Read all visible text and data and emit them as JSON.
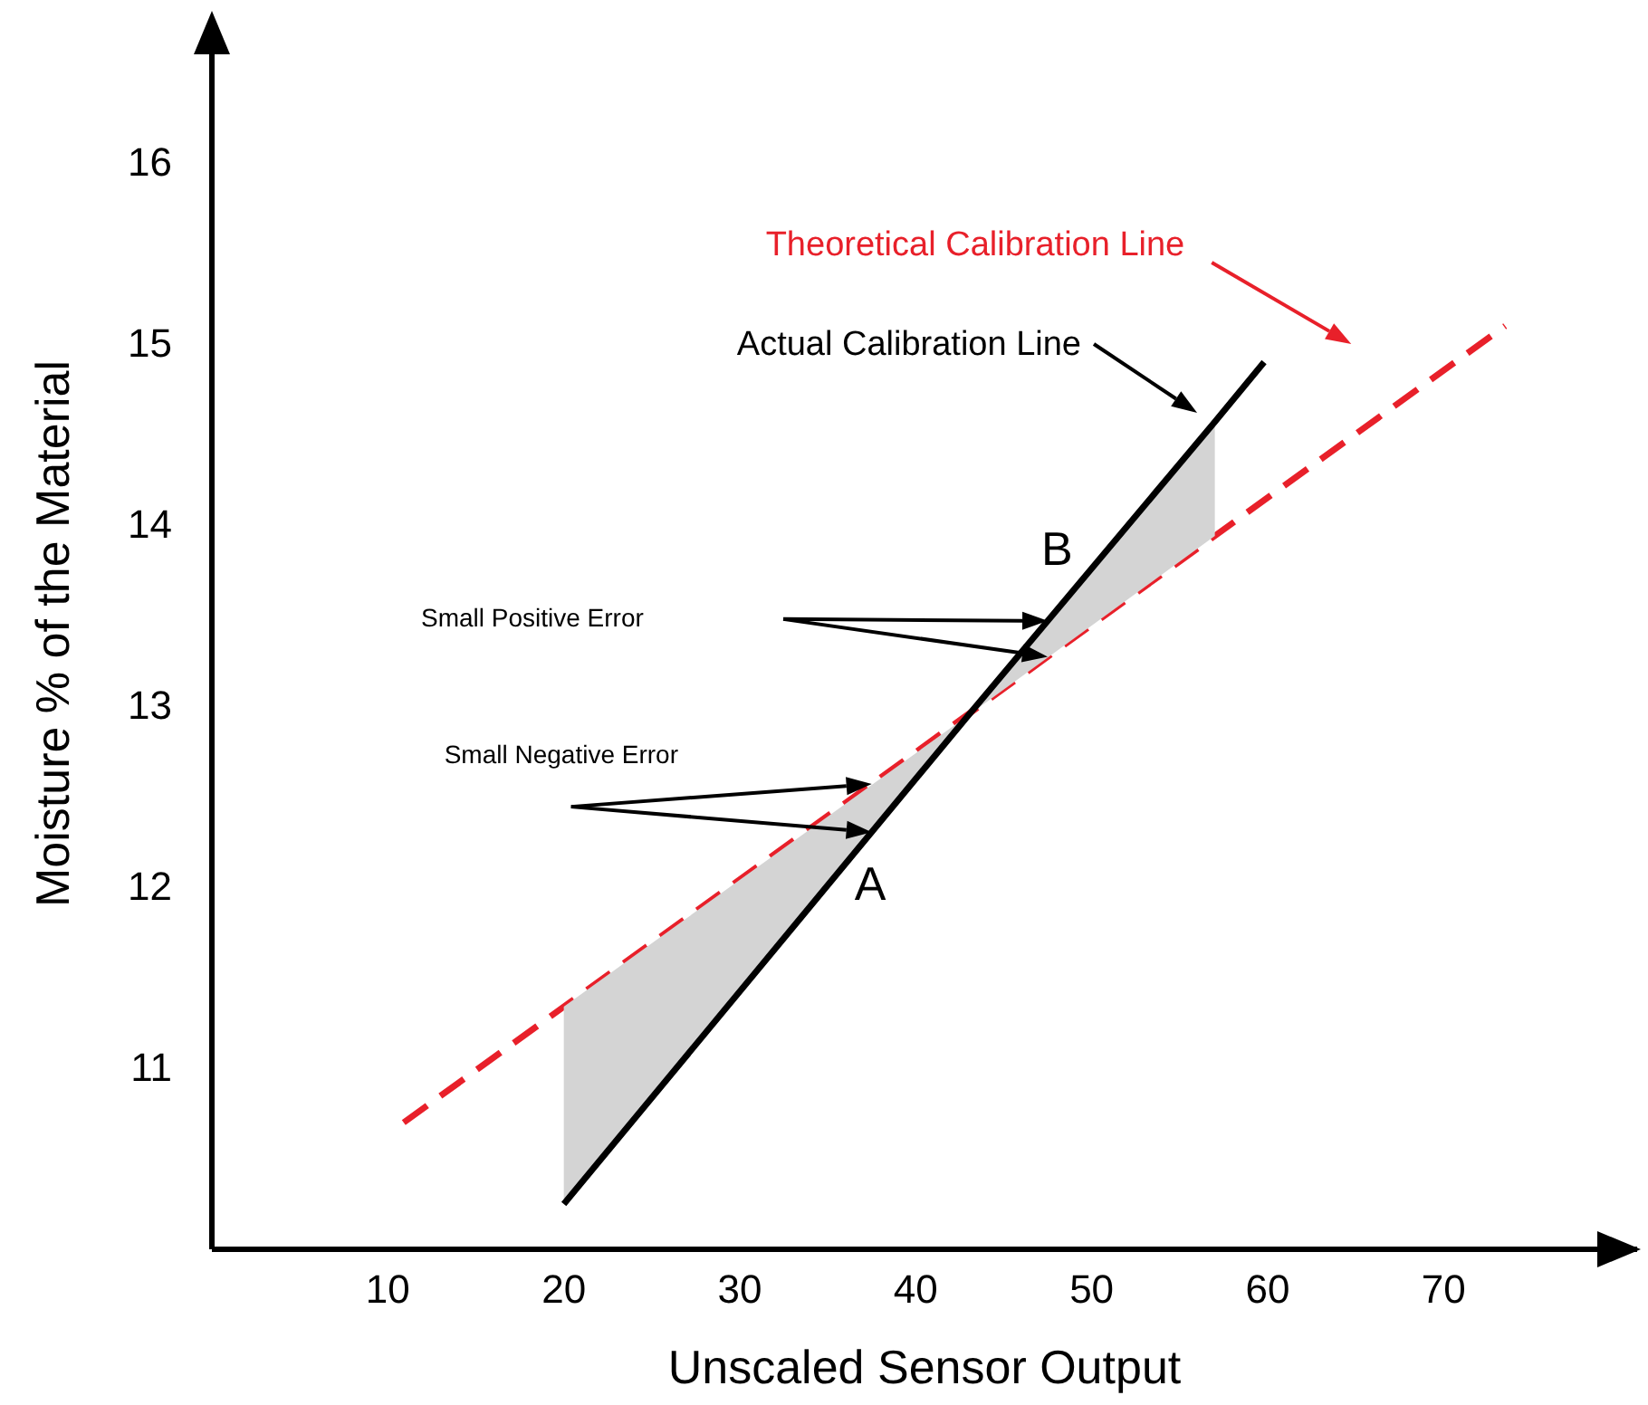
{
  "chart_data": {
    "type": "line",
    "xlabel": "Unscaled Sensor Output",
    "ylabel": "Moisture % of the Material",
    "xlim": [
      0,
      81
    ],
    "ylim": [
      10,
      16.8
    ],
    "xticks": [
      10,
      20,
      30,
      40,
      50,
      60,
      70
    ],
    "yticks": [
      11,
      12,
      13,
      14,
      15,
      16
    ],
    "grid": false,
    "marker": "none",
    "series": [
      {
        "name": "Theoretical Calibration Line",
        "color": "#e8202a",
        "line_style": "dashed",
        "x": [
          10.9,
          73.5
        ],
        "values": [
          10.7,
          15.1
        ]
      },
      {
        "name": "Actual Calibration Line",
        "color": "#000000",
        "line_style": "solid",
        "x": [
          20,
          43,
          57,
          59.8
        ],
        "values": [
          10.25,
          12.95,
          14.57,
          14.9
        ],
        "lower": [
          10.25,
          12.95,
          13.94,
          null
        ],
        "upper": [
          11.34,
          12.95,
          14.57,
          null
        ]
      }
    ],
    "annotations": [
      "Small Positive Error",
      "Small Negative Error",
      {
        "text": "A",
        "x": 37,
        "y": 12.24
      },
      {
        "text": "B",
        "x": 47,
        "y": 13.41
      }
    ]
  }
}
